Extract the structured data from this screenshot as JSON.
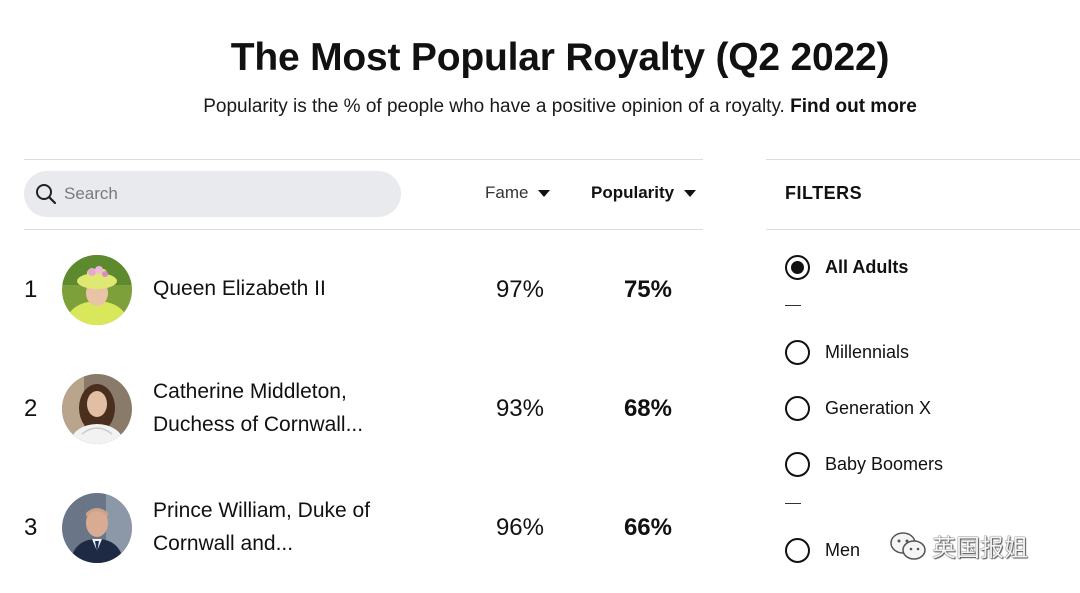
{
  "header": {
    "title": "The Most Popular Royalty (Q2 2022)",
    "subtitle": "Popularity is the % of people who have a positive opinion of a royalty.",
    "link": "Find out more"
  },
  "search": {
    "placeholder": "Search",
    "icon": "search-icon"
  },
  "sort": {
    "fame_label": "Fame",
    "popularity_label": "Popularity"
  },
  "rows": [
    {
      "rank": "1",
      "name": "Queen Elizabeth II",
      "fame": "97%",
      "popularity": "75%",
      "avatar": "avatar-queen-elizabeth"
    },
    {
      "rank": "2",
      "name": "Catherine Middleton, Duchess of Cornwall...",
      "fame": "93%",
      "popularity": "68%",
      "avatar": "avatar-catherine-middleton"
    },
    {
      "rank": "3",
      "name": "Prince William, Duke of Cornwall and...",
      "fame": "96%",
      "popularity": "66%",
      "avatar": "avatar-prince-william"
    }
  ],
  "filters": {
    "title": "FILTERS",
    "options": [
      {
        "label": "All Adults",
        "selected": true
      },
      {
        "label": "Millennials",
        "selected": false
      },
      {
        "label": "Generation X",
        "selected": false
      },
      {
        "label": "Baby Boomers",
        "selected": false
      },
      {
        "label": "Men",
        "selected": false
      }
    ]
  },
  "watermark": {
    "text": "英国报姐",
    "icon": "wechat-icon"
  }
}
